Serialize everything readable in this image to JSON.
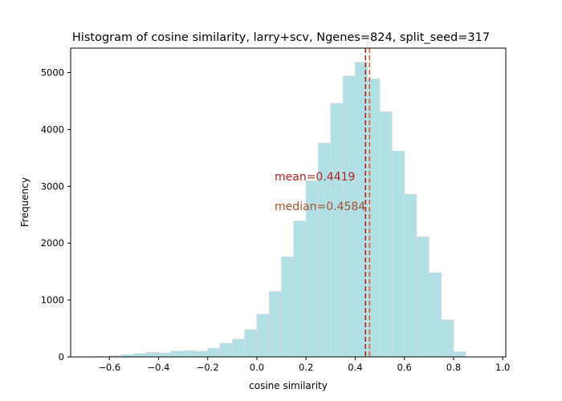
{
  "chart_data": {
    "type": "bar",
    "title": "Histogram of cosine similarity, larry+scv, Ngenes=824, split_seed=317",
    "xlabel": "cosine similarity",
    "ylabel": "Frequency",
    "xlim": [
      -0.7575,
      1.0125
    ],
    "ylim": [
      0,
      5430
    ],
    "x_ticks": [
      -0.6,
      -0.4,
      -0.2,
      0.0,
      0.2,
      0.4,
      0.6,
      0.8,
      1.0
    ],
    "x_tick_labels": [
      "−0.6",
      "−0.4",
      "−0.2",
      "0.0",
      "0.2",
      "0.4",
      "0.6",
      "0.8",
      "1.0"
    ],
    "y_ticks": [
      0,
      1000,
      2000,
      3000,
      4000,
      5000
    ],
    "y_tick_labels": [
      "0",
      "1000",
      "2000",
      "3000",
      "4000",
      "5000"
    ],
    "bin_edges": [
      -0.675,
      -0.6,
      -0.55,
      -0.5,
      -0.45,
      -0.4,
      -0.35,
      -0.3,
      -0.25,
      -0.2,
      -0.15,
      -0.1,
      -0.05,
      0.0,
      0.05,
      0.1,
      0.15,
      0.2,
      0.25,
      0.3,
      0.35,
      0.4,
      0.45,
      0.5,
      0.55,
      0.6,
      0.65,
      0.7,
      0.75,
      0.8,
      0.85,
      0.9,
      0.935
    ],
    "counts": [
      5,
      20,
      40,
      60,
      80,
      70,
      100,
      110,
      100,
      150,
      240,
      310,
      480,
      750,
      1150,
      1760,
      2390,
      3100,
      3760,
      4460,
      4940,
      5180,
      4890,
      4310,
      3620,
      2860,
      2110,
      1480,
      650,
      90,
      0,
      0
    ],
    "mean": 0.4419,
    "median": 0.4584,
    "mean_label": "mean=0.4419",
    "median_label": "median=0.4584",
    "colors": {
      "bar_fill": "#b0e0e6",
      "bar_edge": "#d8d8d8",
      "mean_line": "#b22222",
      "median_line": "#d2691e",
      "mean_text": "#b22222",
      "median_text": "#a0522d"
    },
    "grid": false,
    "legend": "none"
  }
}
